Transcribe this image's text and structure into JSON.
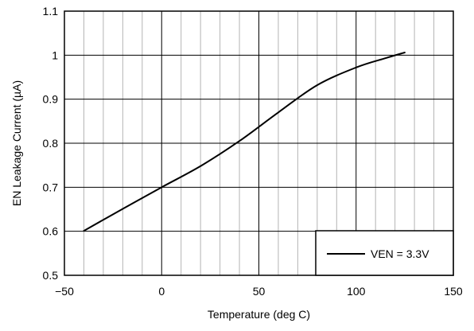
{
  "chart_data": {
    "type": "line",
    "title": "",
    "xlabel": "Temperature (deg C)",
    "ylabel": "EN Leakage Current (µA)",
    "xlim": [
      -50,
      150
    ],
    "ylim": [
      0.5,
      1.1
    ],
    "x_ticks": [
      -50,
      0,
      50,
      100,
      150
    ],
    "x_tick_labels": [
      "−50",
      "0",
      "50",
      "100",
      "150"
    ],
    "y_ticks": [
      0.5,
      0.6,
      0.7,
      0.8,
      0.9,
      1.0,
      1.1
    ],
    "y_tick_labels": [
      "0.5",
      "0.6",
      "0.7",
      "0.8",
      "0.9",
      "1",
      "1.1"
    ],
    "grid": true,
    "legend_position": "bottom-right",
    "colors": {
      "line": "#000000",
      "major_grid": "#000000",
      "minor_grid": "#b4b4b4"
    },
    "series": [
      {
        "name": "VEN = 3.3V",
        "x": [
          -40,
          -20,
          0,
          20,
          40,
          60,
          80,
          100,
          115,
          125
        ],
        "y": [
          0.601,
          0.651,
          0.7,
          0.748,
          0.805,
          0.87,
          0.932,
          0.972,
          0.993,
          1.006
        ]
      }
    ]
  }
}
